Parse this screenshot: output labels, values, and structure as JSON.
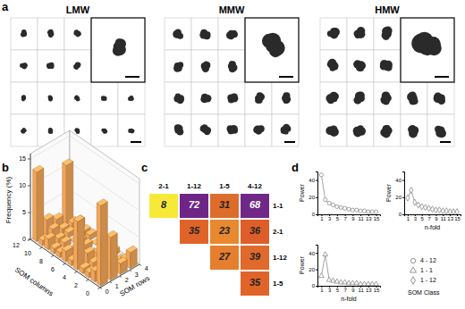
{
  "panel_labels": [
    "a",
    "b",
    "c",
    "d"
  ],
  "images": [
    {
      "title": "LMW"
    },
    {
      "title": "MMW"
    },
    {
      "title": "HMW"
    }
  ],
  "chart_data": [
    {
      "type": "bar3d",
      "x_label": "SOM columns",
      "y_label": "SOM rows",
      "z_label": "Frequency (%)",
      "xlim": [
        0,
        12
      ],
      "xticks": [
        0,
        2,
        4,
        6,
        8,
        10,
        12
      ],
      "ylim": [
        0,
        4
      ],
      "yticks": [
        0,
        1,
        2,
        3,
        4
      ],
      "zlim": [
        0,
        16
      ],
      "zticks": [
        0,
        5,
        10,
        15
      ],
      "x": [
        1,
        2,
        3,
        4,
        5,
        6,
        7,
        8,
        9,
        10,
        11,
        12
      ],
      "y": [
        1,
        2,
        3,
        4
      ],
      "values": [
        [
          15,
          2,
          1,
          1,
          9,
          1,
          2,
          1,
          1,
          2,
          1,
          13
        ],
        [
          8,
          1,
          0,
          1,
          2,
          1,
          1,
          0,
          1,
          1,
          2,
          3
        ],
        [
          2,
          1,
          1,
          0,
          1,
          0,
          1,
          1,
          0,
          1,
          1,
          2
        ],
        [
          3,
          1,
          0,
          1,
          1,
          1,
          0,
          1,
          1,
          2,
          1,
          11
        ]
      ],
      "color": "#f2a65a"
    },
    {
      "type": "heatmap",
      "x": [
        "2-1",
        "1-12",
        "1-5",
        "4-12"
      ],
      "y": [
        "1-1",
        "2-1",
        "1-12",
        "1-5"
      ],
      "values": [
        [
          8,
          72,
          31,
          68
        ],
        [
          null,
          35,
          23,
          36
        ],
        [
          null,
          null,
          27,
          39
        ],
        [
          null,
          null,
          null,
          35
        ]
      ],
      "colors": [
        [
          "#f7e938",
          "#6e2586",
          "#de6d2c",
          "#702888"
        ],
        [
          null,
          "#e0642a",
          "#e8892f",
          "#de5e2a"
        ],
        [
          null,
          null,
          "#e57f2e",
          "#e06a2b"
        ],
        [
          null,
          null,
          null,
          "#e0642a"
        ]
      ],
      "data_labels": true
    },
    {
      "type": "line",
      "y_label": "Power",
      "x": [
        1,
        2,
        3,
        4,
        5,
        6,
        7,
        8,
        9,
        10,
        11,
        12,
        13,
        14,
        15
      ],
      "xlim": [
        0,
        16
      ],
      "xticks": [
        1,
        3,
        5,
        7,
        9,
        11,
        13,
        15
      ],
      "ylim": [
        0,
        50
      ],
      "yticks": [
        0,
        20,
        40
      ],
      "series": [
        {
          "name": "4 - 12",
          "marker": "circle",
          "line_style": "solid",
          "color": "#8a8a8a",
          "values": [
            46,
            17,
            13,
            11,
            9,
            8,
            7,
            6,
            5,
            5,
            4,
            4,
            3,
            3,
            3
          ]
        }
      ]
    },
    {
      "type": "line",
      "y_label": "Power",
      "x_label": "n-fold",
      "x": [
        1,
        2,
        3,
        4,
        5,
        6,
        7,
        8,
        9,
        10,
        11,
        12,
        13,
        14,
        15
      ],
      "xlim": [
        0,
        16
      ],
      "xticks": [
        1,
        3,
        5,
        7,
        9,
        11,
        13,
        15
      ],
      "ylim": [
        0,
        50
      ],
      "yticks": [
        0,
        20,
        40
      ],
      "series": [
        {
          "name": "1 - 1",
          "marker": "triangle",
          "line_style": "solid",
          "color": "#8a8a8a",
          "values": [
            12,
            38,
            7,
            6,
            5,
            4,
            4,
            3,
            3,
            3,
            2,
            2,
            2,
            2,
            2
          ]
        }
      ]
    },
    {
      "type": "line",
      "y_label": "Power",
      "x_label": "n-fold",
      "x": [
        1,
        2,
        3,
        4,
        5,
        6,
        7,
        8,
        9,
        10,
        11,
        12,
        13,
        14,
        15
      ],
      "xlim": [
        0,
        16
      ],
      "xticks": [
        1,
        3,
        5,
        7,
        9,
        11,
        13,
        15
      ],
      "ylim": [
        0,
        50
      ],
      "yticks": [
        0,
        20,
        40
      ],
      "series": [
        {
          "name": "1 - 12",
          "marker": "diamond",
          "line_style": "solid",
          "color": "#8a8a8a",
          "values": [
            19,
            28,
            14,
            11,
            9,
            8,
            7,
            6,
            5,
            5,
            4,
            4,
            3,
            3,
            3
          ]
        }
      ]
    }
  ],
  "legend": {
    "title": "SOM Class"
  }
}
